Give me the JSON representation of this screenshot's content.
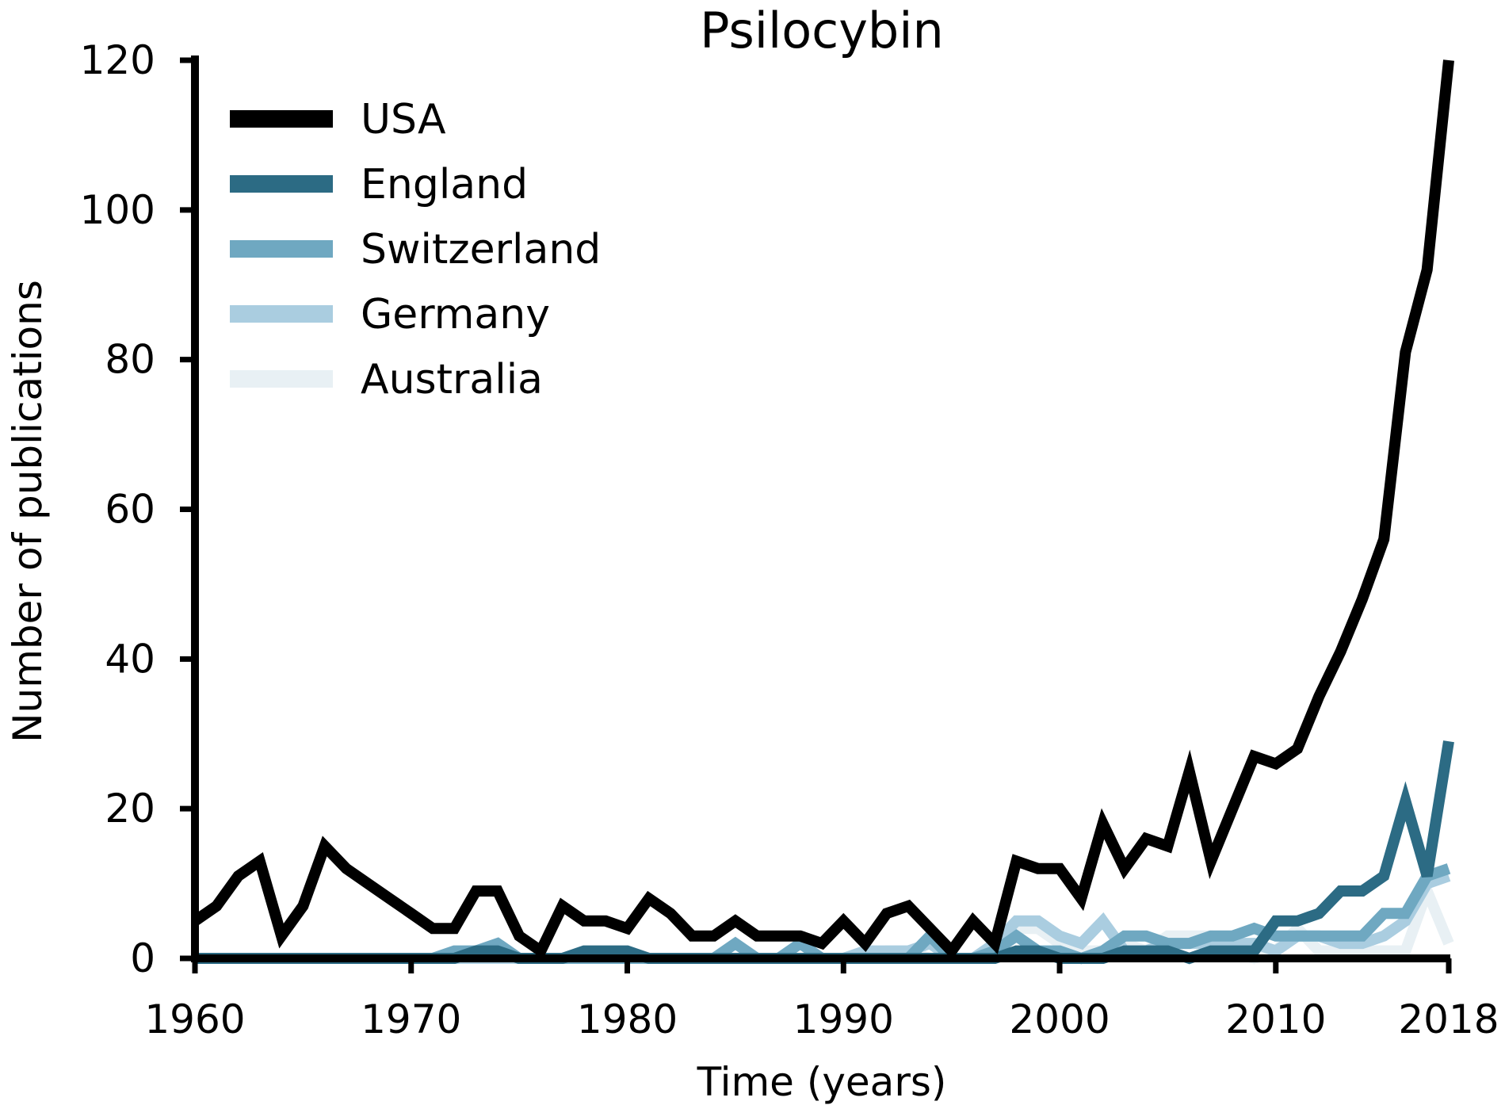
{
  "chart_data": {
    "type": "line",
    "title": "Psilocybin",
    "xlabel": "Time (years)",
    "ylabel": "Number of publications",
    "xlim": [
      1960,
      2018
    ],
    "ylim": [
      0,
      120
    ],
    "xticks": [
      1960,
      1970,
      1980,
      1990,
      2000,
      2010,
      2018
    ],
    "yticks": [
      0,
      20,
      40,
      60,
      80,
      100,
      120
    ],
    "grid": false,
    "legend_position": "top-left",
    "x": [
      1960,
      1961,
      1962,
      1963,
      1964,
      1965,
      1966,
      1967,
      1968,
      1969,
      1970,
      1971,
      1972,
      1973,
      1974,
      1975,
      1976,
      1977,
      1978,
      1979,
      1980,
      1981,
      1982,
      1983,
      1984,
      1985,
      1986,
      1987,
      1988,
      1989,
      1990,
      1991,
      1992,
      1993,
      1994,
      1995,
      1996,
      1997,
      1998,
      1999,
      2000,
      2001,
      2002,
      2003,
      2004,
      2005,
      2006,
      2007,
      2008,
      2009,
      2010,
      2011,
      2012,
      2013,
      2014,
      2015,
      2016,
      2017,
      2018
    ],
    "series": [
      {
        "name": "Australia",
        "color": "#e8f0f4",
        "values": [
          0,
          0,
          0,
          0,
          0,
          0,
          0,
          0,
          0,
          0,
          0,
          0,
          0,
          0,
          0,
          0,
          0,
          0,
          0,
          0,
          0,
          0,
          0,
          0,
          0,
          0,
          0,
          0,
          0,
          0,
          0,
          0,
          1,
          1,
          0,
          0,
          0,
          1,
          4,
          4,
          2,
          1,
          1,
          2,
          1,
          3,
          3,
          3,
          1,
          0,
          1,
          4,
          1,
          1,
          1,
          1,
          1,
          9,
          2
        ]
      },
      {
        "name": "Germany",
        "color": "#aacde0",
        "values": [
          0,
          0,
          0,
          0,
          0,
          0,
          0,
          0,
          0,
          0,
          0,
          0,
          0,
          0,
          0,
          0,
          0,
          0,
          0,
          0,
          0,
          0,
          0,
          0,
          0,
          0,
          0,
          0,
          0,
          0,
          0,
          1,
          1,
          1,
          2,
          0,
          0,
          2,
          5,
          5,
          3,
          2,
          5,
          1,
          1,
          2,
          2,
          2,
          2,
          2,
          1,
          3,
          3,
          2,
          2,
          3,
          5,
          10,
          11
        ]
      },
      {
        "name": "Switzerland",
        "color": "#6fa8c1",
        "values": [
          0,
          0,
          0,
          0,
          0,
          0,
          0,
          0,
          0,
          0,
          0,
          0,
          1,
          1,
          2,
          0,
          0,
          0,
          0,
          0,
          0,
          0,
          0,
          0,
          0,
          2,
          0,
          0,
          2,
          0,
          0,
          0,
          0,
          0,
          3,
          0,
          0,
          1,
          3,
          1,
          1,
          0,
          1,
          3,
          3,
          2,
          2,
          3,
          3,
          4,
          3,
          3,
          3,
          3,
          3,
          6,
          6,
          11,
          12
        ]
      },
      {
        "name": "England",
        "color": "#2c6b84",
        "values": [
          0,
          0,
          0,
          0,
          0,
          0,
          0,
          0,
          0,
          0,
          0,
          0,
          0,
          1,
          1,
          0,
          0,
          0,
          1,
          1,
          1,
          0,
          0,
          0,
          0,
          0,
          0,
          0,
          0,
          0,
          0,
          0,
          0,
          0,
          0,
          0,
          0,
          0,
          1,
          1,
          0,
          0,
          0,
          1,
          1,
          1,
          0,
          1,
          1,
          1,
          5,
          5,
          6,
          9,
          9,
          11,
          21,
          11,
          29
        ]
      },
      {
        "name": "USA",
        "color": "#000000",
        "values": [
          5,
          7,
          11,
          13,
          3,
          7,
          15,
          12,
          10,
          8,
          6,
          4,
          4,
          9,
          9,
          3,
          1,
          7,
          5,
          5,
          4,
          8,
          6,
          3,
          3,
          5,
          3,
          3,
          3,
          2,
          5,
          2,
          6,
          7,
          4,
          1,
          5,
          2,
          13,
          12,
          12,
          8,
          18,
          12,
          16,
          15,
          25,
          13,
          20,
          27,
          26,
          28,
          35,
          41,
          48,
          56,
          81,
          92,
          120
        ]
      }
    ]
  }
}
